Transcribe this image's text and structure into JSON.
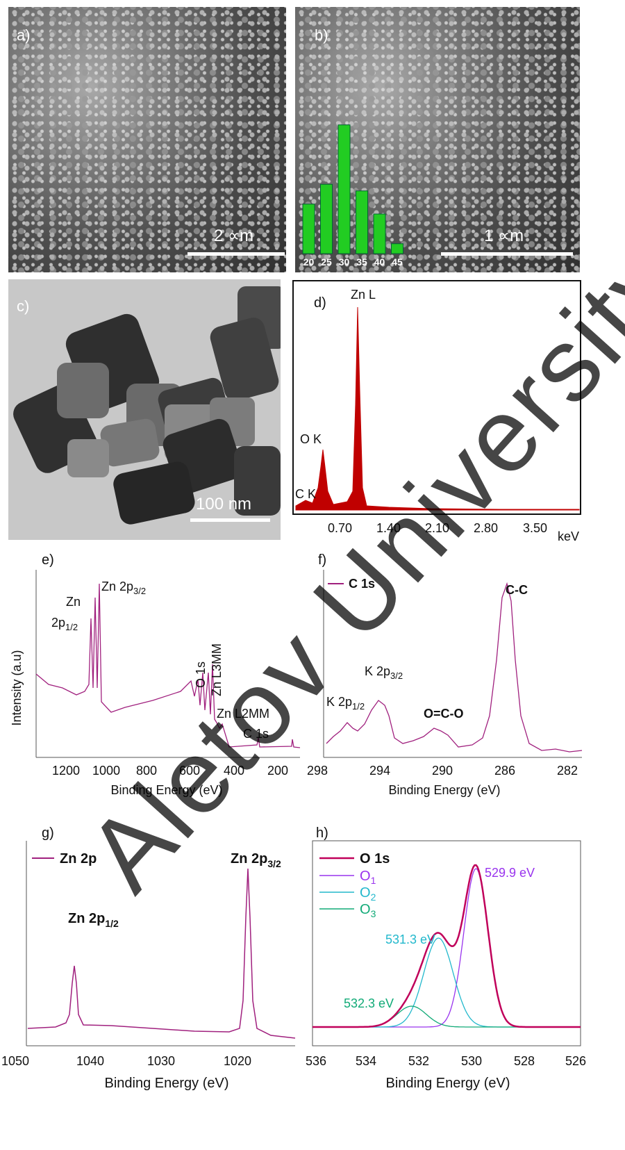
{
  "panels": {
    "a": {
      "tag": "a)",
      "scale": "2 ∝m"
    },
    "b": {
      "tag": "b)",
      "scale": "1 ∝m",
      "hist": {
        "categories": [
          "20",
          "25",
          "30",
          "35",
          "40",
          "45"
        ],
        "values": [
          7.5,
          10.5,
          19.5,
          9.5,
          6,
          1.5
        ]
      }
    },
    "c": {
      "tag": "c)",
      "scale": "100 nm"
    },
    "d": {
      "tag": "d)",
      "peaks": [
        "Zn L",
        "O K",
        "C K"
      ],
      "ticks": [
        "0.70",
        "1.40",
        "2.10",
        "2.80",
        "3.50"
      ],
      "unit": "keV"
    },
    "e": {
      "tag": "e)",
      "ylabel": "Intensity (a.u)",
      "xlabel": "Binding Energy (eV)",
      "ticks": [
        "1200",
        "1000",
        "800",
        "600",
        "400",
        "200"
      ],
      "ann": {
        "zn2p12_a": "Zn",
        "zn2p12_b": "2p",
        "zn2p12_sub": "1/2",
        "zn2p32": "Zn 2p",
        "zn2p32_sub": "3/2",
        "o1s": "O 1s",
        "znl3mm": "Zn L3MM",
        "znl2mm": "Zn L2MM",
        "c1s": "C 1s"
      }
    },
    "f": {
      "tag": "f)",
      "legend": "C 1s",
      "xlabel": "Binding Energy (eV)",
      "ticks": [
        "298",
        "294",
        "290",
        "286",
        "282"
      ],
      "ann": {
        "k2p12": "K 2p",
        "k2p12_sub": "1/2",
        "k2p32": "K 2p",
        "k2p32_sub": "3/2",
        "oco": "O=C-O",
        "cc": "C-C"
      }
    },
    "g": {
      "tag": "g)",
      "legend": "Zn 2p",
      "xlabel": "Binding Energy (eV)",
      "ticks": [
        "1050",
        "1040",
        "1030",
        "1020"
      ],
      "ann": {
        "p12": "Zn 2p",
        "p12_sub": "1/2",
        "p32": "Zn 2p",
        "p32_sub": "3/2"
      }
    },
    "h": {
      "tag": "h)",
      "legend": [
        "O 1s",
        "O",
        "O",
        "O"
      ],
      "legend_sub": [
        "",
        "1",
        "2",
        "3"
      ],
      "xlabel": "Binding Energy (eV)",
      "ticks": [
        "536",
        "534",
        "532",
        "530",
        "528",
        "526"
      ],
      "ann": {
        "e1": "529.9 eV",
        "e2": "531.3 eV",
        "e3": "532.3 eV"
      }
    }
  },
  "watermark": "Aletov University",
  "colors": {
    "spectrum": "#a0207e",
    "eds": "#c00000",
    "hist": "#22cc22",
    "o1": "#9933ee",
    "o2": "#22b8cc",
    "o3": "#11aa77",
    "o1s": "#c0005a"
  },
  "chart_data": [
    {
      "type": "bar",
      "title": "",
      "categories": [
        "20",
        "25",
        "30",
        "35",
        "40",
        "45"
      ],
      "values": [
        7.5,
        10.5,
        19.5,
        9.5,
        6,
        1.5
      ]
    },
    {
      "type": "line",
      "xlabel": "keV",
      "x": [
        0.28,
        0.52,
        0.93,
        1.0,
        1.1
      ],
      "y": [
        18,
        95,
        300,
        120,
        10
      ]
    },
    {
      "type": "line",
      "xlabel": "Binding Energy (eV)",
      "ylabel": "Intensity (a.u)",
      "x": [
        1044,
        1021,
        530,
        498,
        285
      ],
      "y": [
        60,
        100,
        35,
        35,
        5
      ]
    },
    {
      "type": "line",
      "xlabel": "Binding Energy (eV)",
      "x": [
        296,
        293,
        288.5,
        284.8
      ],
      "y": [
        25,
        45,
        20,
        100
      ]
    },
    {
      "type": "line",
      "xlabel": "Binding Energy (eV)",
      "x": [
        1044.5,
        1021.3
      ],
      "y": [
        48,
        100
      ]
    },
    {
      "type": "line",
      "xlabel": "Binding Energy (eV)",
      "series": [
        {
          "name": "O1",
          "x": [
            529.9
          ],
          "y": [
            100
          ]
        },
        {
          "name": "O2",
          "x": [
            531.3
          ],
          "y": [
            56
          ]
        },
        {
          "name": "O3",
          "x": [
            532.3
          ],
          "y": [
            13
          ]
        }
      ]
    }
  ]
}
